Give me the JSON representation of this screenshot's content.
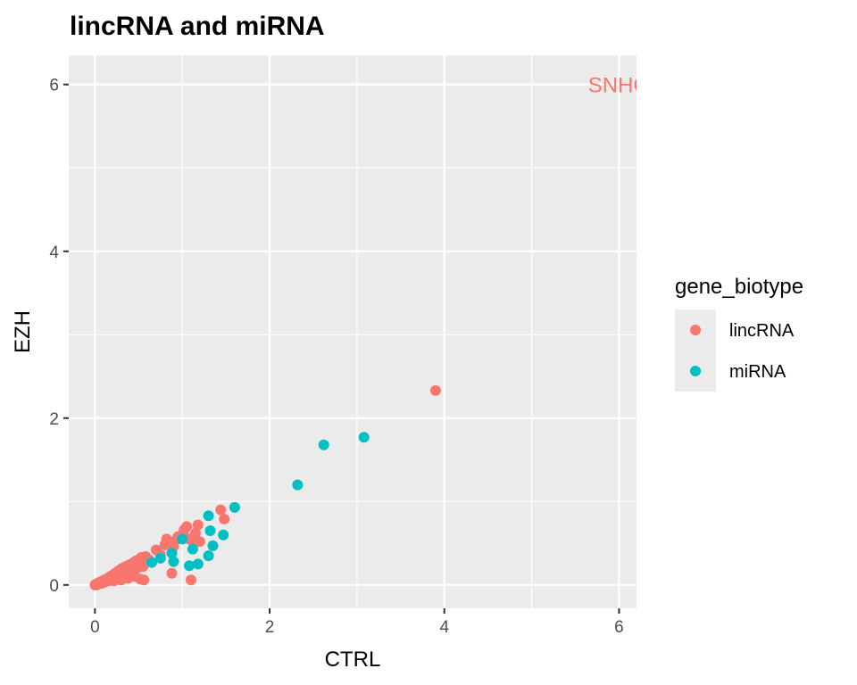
{
  "chart_data": {
    "type": "scatter",
    "title": "lincRNA and miRNA",
    "xlabel": "CTRL",
    "ylabel": "EZH",
    "xlim": [
      -0.3,
      6.2
    ],
    "ylim": [
      -0.28,
      6.35
    ],
    "x_ticks": [
      0,
      2,
      4,
      6
    ],
    "y_ticks": [
      0,
      2,
      4,
      6
    ],
    "grid": true,
    "legend": {
      "title": "gene_biotype",
      "position": "right"
    },
    "annotations": [
      {
        "text": "SNHG",
        "x": 6.0,
        "y": 6.0,
        "color": "#F8766D"
      }
    ],
    "series": [
      {
        "name": "lincRNA",
        "color": "#F8766D",
        "points": [
          [
            0.0,
            0.0
          ],
          [
            0.01,
            0.01
          ],
          [
            0.02,
            0.0
          ],
          [
            0.03,
            0.02
          ],
          [
            0.04,
            0.01
          ],
          [
            0.05,
            0.03
          ],
          [
            0.06,
            0.02
          ],
          [
            0.07,
            0.04
          ],
          [
            0.08,
            0.02
          ],
          [
            0.09,
            0.05
          ],
          [
            0.1,
            0.03
          ],
          [
            0.11,
            0.06
          ],
          [
            0.12,
            0.04
          ],
          [
            0.13,
            0.07
          ],
          [
            0.14,
            0.05
          ],
          [
            0.15,
            0.08
          ],
          [
            0.16,
            0.05
          ],
          [
            0.17,
            0.1
          ],
          [
            0.18,
            0.06
          ],
          [
            0.19,
            0.11
          ],
          [
            0.2,
            0.07
          ],
          [
            0.21,
            0.12
          ],
          [
            0.22,
            0.05
          ],
          [
            0.23,
            0.14
          ],
          [
            0.24,
            0.08
          ],
          [
            0.25,
            0.15
          ],
          [
            0.26,
            0.09
          ],
          [
            0.27,
            0.17
          ],
          [
            0.28,
            0.1
          ],
          [
            0.29,
            0.18
          ],
          [
            0.3,
            0.06
          ],
          [
            0.31,
            0.2
          ],
          [
            0.32,
            0.12
          ],
          [
            0.33,
            0.19
          ],
          [
            0.34,
            0.1
          ],
          [
            0.35,
            0.22
          ],
          [
            0.36,
            0.14
          ],
          [
            0.37,
            0.21
          ],
          [
            0.38,
            0.08
          ],
          [
            0.39,
            0.24
          ],
          [
            0.4,
            0.16
          ],
          [
            0.41,
            0.23
          ],
          [
            0.42,
            0.12
          ],
          [
            0.43,
            0.26
          ],
          [
            0.44,
            0.18
          ],
          [
            0.45,
            0.27
          ],
          [
            0.46,
            0.1
          ],
          [
            0.47,
            0.29
          ],
          [
            0.48,
            0.2
          ],
          [
            0.5,
            0.3
          ],
          [
            0.52,
            0.07
          ],
          [
            0.53,
            0.33
          ],
          [
            0.55,
            0.22
          ],
          [
            0.56,
            0.06
          ],
          [
            0.58,
            0.34
          ],
          [
            0.6,
            0.28
          ],
          [
            0.62,
            0.3
          ],
          [
            0.7,
            0.42
          ],
          [
            0.75,
            0.36
          ],
          [
            0.8,
            0.48
          ],
          [
            0.82,
            0.55
          ],
          [
            0.85,
            0.5
          ],
          [
            0.88,
            0.14
          ],
          [
            0.9,
            0.46
          ],
          [
            0.92,
            0.53
          ],
          [
            0.95,
            0.58
          ],
          [
            1.0,
            0.6
          ],
          [
            1.02,
            0.66
          ],
          [
            1.05,
            0.7
          ],
          [
            1.08,
            0.55
          ],
          [
            1.1,
            0.06
          ],
          [
            1.12,
            0.52
          ],
          [
            1.15,
            0.62
          ],
          [
            1.18,
            0.72
          ],
          [
            1.2,
            0.52
          ],
          [
            1.44,
            0.9
          ],
          [
            1.48,
            0.79
          ],
          [
            3.9,
            2.33
          ]
        ]
      },
      {
        "name": "miRNA",
        "color": "#00BFC4",
        "points": [
          [
            0.65,
            0.27
          ],
          [
            0.75,
            0.32
          ],
          [
            0.88,
            0.38
          ],
          [
            0.9,
            0.28
          ],
          [
            1.0,
            0.55
          ],
          [
            1.08,
            0.23
          ],
          [
            1.12,
            0.43
          ],
          [
            1.18,
            0.25
          ],
          [
            1.3,
            0.35
          ],
          [
            1.3,
            0.83
          ],
          [
            1.32,
            0.65
          ],
          [
            1.35,
            0.47
          ],
          [
            1.47,
            0.6
          ],
          [
            1.6,
            0.93
          ],
          [
            2.32,
            1.2
          ],
          [
            2.62,
            1.68
          ],
          [
            3.08,
            1.77
          ]
        ]
      }
    ]
  }
}
